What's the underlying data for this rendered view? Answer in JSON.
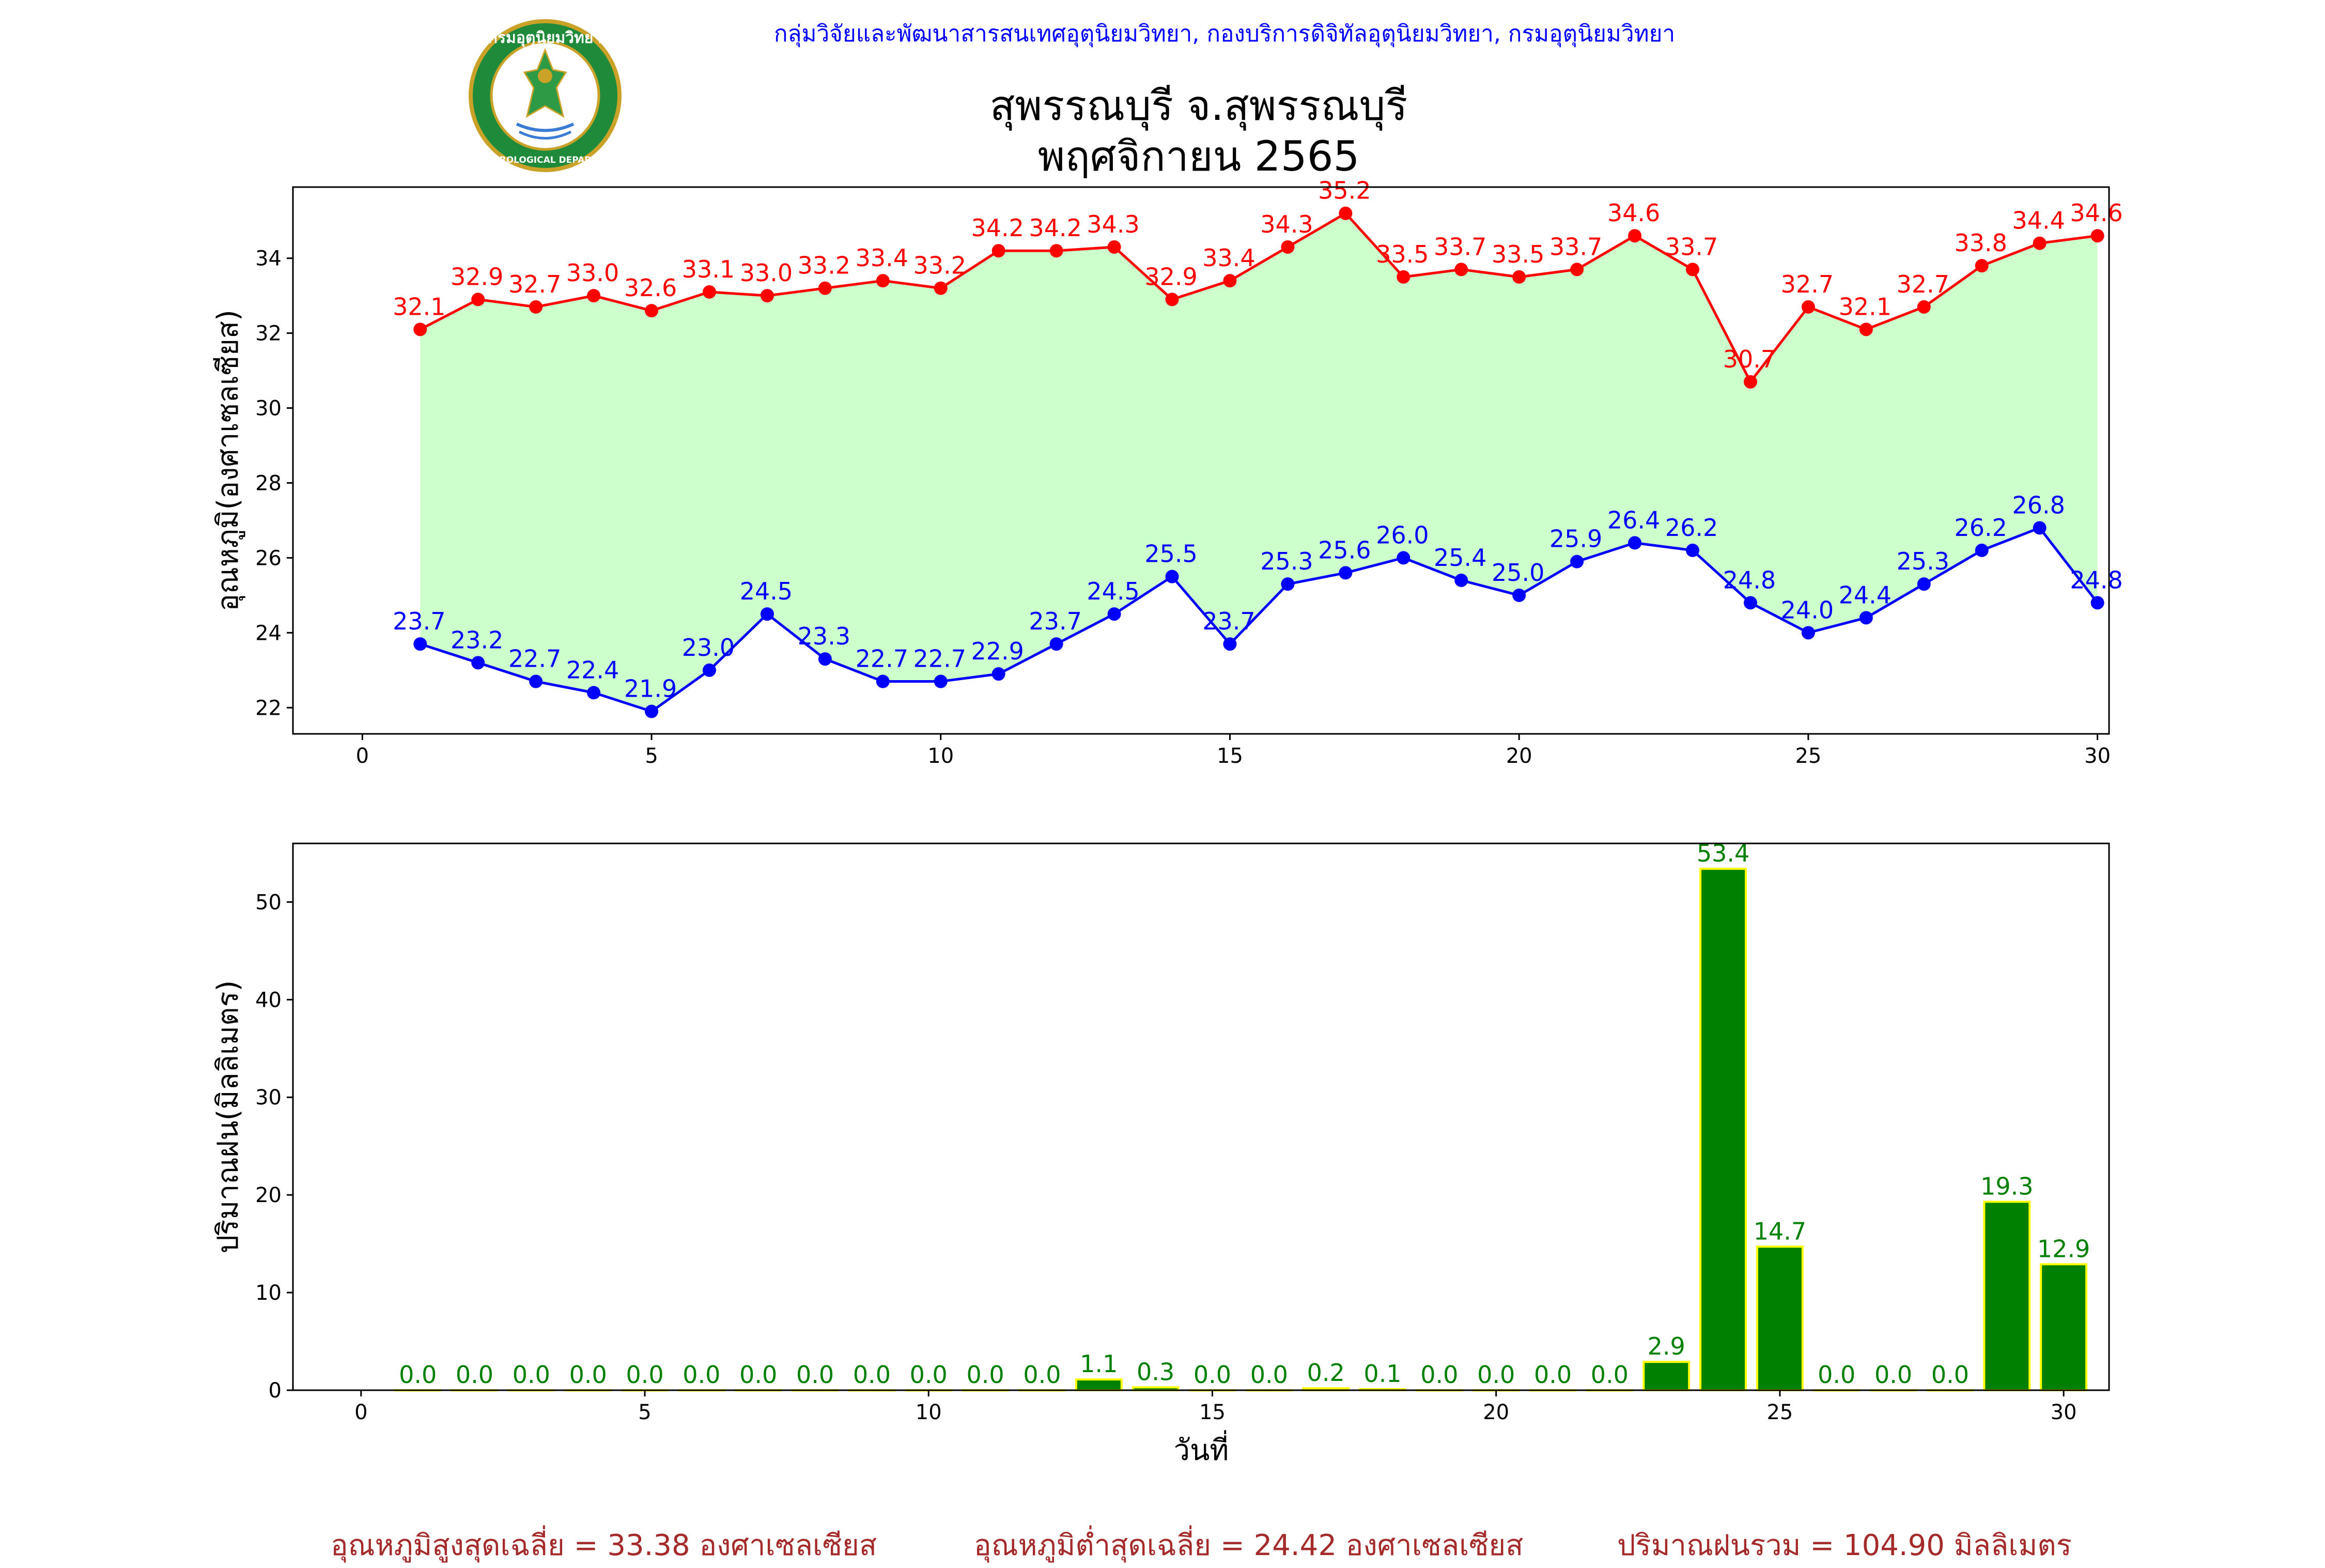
{
  "header": {
    "agency_line": "กลุ่มวิจัยและพัฒนาสารสนเทศอุตุนิยมวิทยา, กองบริการดิจิทัลอุตุนิยมวิทยา, กรมอุตุนิยมวิทยา",
    "title_line1": "สุพรรณบุรี จ.สุพรรณบุรี",
    "title_line2": "พฤศจิกายน 2565",
    "logo_text_top": "กรมอุตุนิยมวิทยา",
    "logo_text_bottom": "METEOROLOGICAL DEPARTMENT"
  },
  "footer": {
    "avg_max": "อุณหภูมิสูงสุดเฉลี่ย = 33.38 องศาเซลเซียส",
    "avg_min": "อุณหภูมิต่ำสุดเฉลี่ย = 24.42 องศาเซลเซียส",
    "total_rain": "ปริมาณฝนรวม = 104.90 มิลลิเมตร"
  },
  "colors": {
    "max_line": "#ff0000",
    "min_line": "#0000ff",
    "fill": "#ccffcc",
    "bar_fill": "#008000",
    "bar_edge": "#ffff00",
    "bar_label": "#008000",
    "footer_text": "#a52a2a",
    "header_text": "#0000ff"
  },
  "chart_data": [
    {
      "type": "line",
      "ylabel": "อุณหภูมิ(องศาเซลเซียส)",
      "xlabel": "",
      "xlim": [
        -1.2,
        30.2
      ],
      "ylim": [
        21.3,
        35.9
      ],
      "xticks": [
        0,
        5,
        10,
        15,
        20,
        25,
        30
      ],
      "yticks": [
        22,
        24,
        26,
        28,
        30,
        32,
        34
      ],
      "x": [
        1,
        2,
        3,
        4,
        5,
        6,
        7,
        8,
        9,
        10,
        11,
        12,
        13,
        14,
        15,
        16,
        17,
        18,
        19,
        20,
        21,
        22,
        23,
        24,
        25,
        26,
        27,
        28,
        29,
        30
      ],
      "series": [
        {
          "key": "max",
          "values": [
            32.1,
            32.9,
            32.7,
            33.0,
            32.6,
            33.1,
            33.0,
            33.2,
            33.4,
            33.2,
            34.2,
            34.2,
            34.3,
            32.9,
            33.4,
            34.3,
            35.2,
            33.5,
            33.7,
            33.5,
            33.7,
            34.6,
            33.7,
            30.7,
            32.7,
            32.1,
            32.7,
            33.8,
            34.4,
            34.6
          ]
        },
        {
          "key": "min",
          "values": [
            23.7,
            23.2,
            22.7,
            22.4,
            21.9,
            23.0,
            24.5,
            23.3,
            22.7,
            22.7,
            22.9,
            23.7,
            24.5,
            25.5,
            23.7,
            25.3,
            25.6,
            26.0,
            25.4,
            25.0,
            25.9,
            26.4,
            26.2,
            24.8,
            24.0,
            24.4,
            25.3,
            26.2,
            26.8,
            24.8
          ]
        }
      ],
      "fill_between": true
    },
    {
      "type": "bar",
      "ylabel": "ปริมาณฝน(มิลลิเมตร)",
      "xlabel": "วันที่",
      "xlim": [
        -1.2,
        30.8
      ],
      "ylim": [
        0,
        56
      ],
      "xticks": [
        0,
        5,
        10,
        15,
        20,
        25,
        30
      ],
      "yticks": [
        0,
        10,
        20,
        30,
        40,
        50
      ],
      "x": [
        1,
        2,
        3,
        4,
        5,
        6,
        7,
        8,
        9,
        10,
        11,
        12,
        13,
        14,
        15,
        16,
        17,
        18,
        19,
        20,
        21,
        22,
        23,
        24,
        25,
        26,
        27,
        28,
        29,
        30
      ],
      "values": [
        0.0,
        0.0,
        0.0,
        0.0,
        0.0,
        0.0,
        0.0,
        0.0,
        0.0,
        0.0,
        0.0,
        0.0,
        1.1,
        0.3,
        0.0,
        0.0,
        0.2,
        0.1,
        0.0,
        0.0,
        0.0,
        0.0,
        2.9,
        53.4,
        14.7,
        0.0,
        0.0,
        0.0,
        19.3,
        12.9
      ]
    }
  ]
}
